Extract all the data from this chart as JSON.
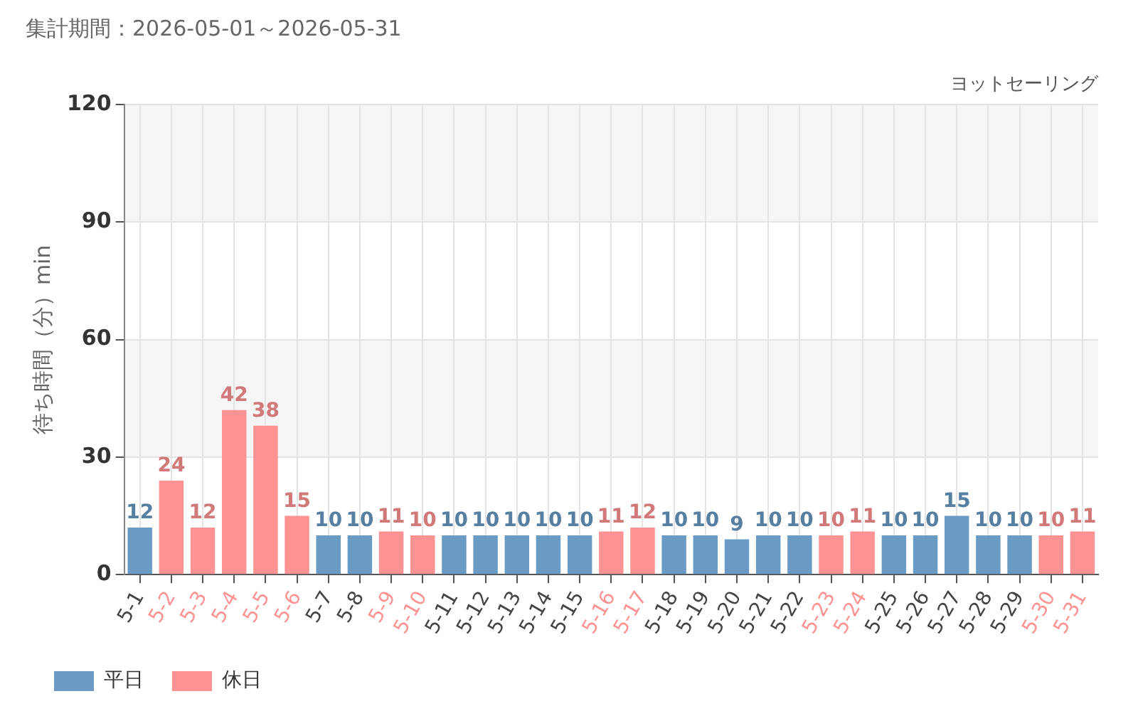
{
  "chart_data": {
    "type": "bar",
    "title": "集計期間：2026-05-01～2026-05-31",
    "subtitle": "ヨットセーリング",
    "ylabel": "待ち時間（分）min",
    "categories": [
      "5-1",
      "5-2",
      "5-3",
      "5-4",
      "5-5",
      "5-6",
      "5-7",
      "5-8",
      "5-9",
      "5-10",
      "5-11",
      "5-12",
      "5-13",
      "5-14",
      "5-15",
      "5-16",
      "5-17",
      "5-18",
      "5-19",
      "5-20",
      "5-21",
      "5-22",
      "5-23",
      "5-24",
      "5-25",
      "5-26",
      "5-27",
      "5-28",
      "5-29",
      "5-30",
      "5-31"
    ],
    "series": [
      {
        "name": "平日",
        "color": "#6a9bc5",
        "values": [
          12,
          null,
          null,
          null,
          null,
          null,
          10,
          10,
          null,
          null,
          10,
          10,
          10,
          10,
          10,
          null,
          null,
          10,
          10,
          9,
          10,
          10,
          null,
          null,
          10,
          10,
          15,
          10,
          10,
          null,
          null
        ]
      },
      {
        "name": "休日",
        "color": "#ff9292",
        "values": [
          null,
          24,
          12,
          42,
          38,
          15,
          null,
          null,
          11,
          10,
          null,
          null,
          null,
          null,
          null,
          11,
          12,
          null,
          null,
          null,
          null,
          null,
          10,
          11,
          null,
          null,
          null,
          null,
          null,
          10,
          11
        ]
      }
    ],
    "ylim": [
      0,
      120
    ],
    "yticks": [
      0,
      30,
      60,
      90,
      120
    ],
    "grid": true,
    "legend": "bottom left",
    "data_labels": true
  }
}
